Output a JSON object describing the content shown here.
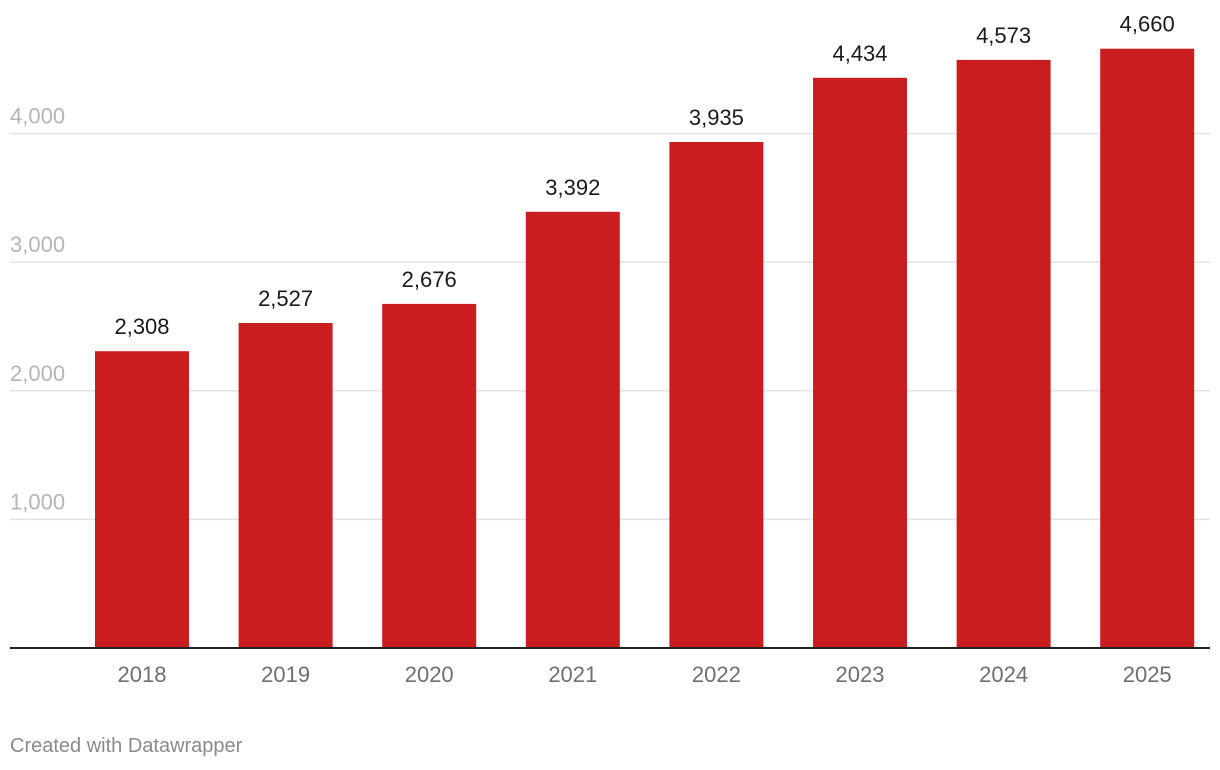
{
  "chart_data": {
    "type": "bar",
    "title": "",
    "xlabel": "",
    "ylabel": "",
    "categories": [
      "2018",
      "2019",
      "2020",
      "2021",
      "2022",
      "2023",
      "2024",
      "2025"
    ],
    "values": [
      2308,
      2527,
      2676,
      3392,
      3935,
      4434,
      4573,
      4660
    ],
    "value_labels": [
      "2,308",
      "2,527",
      "2,676",
      "3,392",
      "3,935",
      "4,434",
      "4,573",
      "4,660"
    ],
    "ylim": [
      0,
      4800
    ],
    "yticks": [
      1000,
      2000,
      3000,
      4000
    ],
    "ytick_labels": [
      "1,000",
      "2,000",
      "3,000",
      "4,000"
    ],
    "grid": true,
    "colors": {
      "bar": "#c91d1f"
    }
  },
  "footer": {
    "credit": "Created with Datawrapper"
  }
}
